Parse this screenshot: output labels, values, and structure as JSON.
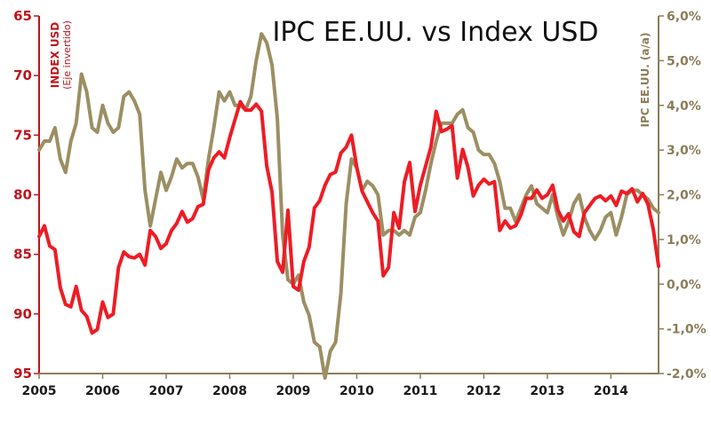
{
  "chart_data": {
    "type": "line",
    "title": "IPC EE.UU. vs Index USD",
    "x_start": "2005-01",
    "x_end": "2014-09",
    "x_step": "month",
    "x_ticks": [
      "2005",
      "2006",
      "2007",
      "2008",
      "2009",
      "2010",
      "2011",
      "2012",
      "2013",
      "2014"
    ],
    "y_left": {
      "label": "INDEX USD",
      "sublabel": "(Eje invertido)",
      "ylim": [
        65,
        95
      ],
      "inverted": true,
      "ticks": [
        "65",
        "70",
        "75",
        "80",
        "85",
        "90",
        "95"
      ],
      "color": "#ee1c24"
    },
    "y_right": {
      "label": "IPC EE.UU. (a/a)",
      "ylim": [
        -2.0,
        6.0
      ],
      "ticks": [
        "-2,0%",
        "-1,0%",
        "0,0%",
        "1,0%",
        "2,0%",
        "3,0%",
        "4,0%",
        "5,0%",
        "6,0%"
      ],
      "color": "#9b8f63"
    },
    "grid": false,
    "legend": "none",
    "series": [
      {
        "axis": "left",
        "color": "#ee1c24",
        "values": [
          83.5,
          82.6,
          84.3,
          84.6,
          87.8,
          89.2,
          89.4,
          87.7,
          89.7,
          90.2,
          91.6,
          91.3,
          89.0,
          90.3,
          90.0,
          86.1,
          84.8,
          85.2,
          85.3,
          85.0,
          85.9,
          83.0,
          83.5,
          84.5,
          84.1,
          83.0,
          82.4,
          81.4,
          82.3,
          82.0,
          81.0,
          80.8,
          77.9,
          76.9,
          76.4,
          76.9,
          75.2,
          73.7,
          72.2,
          72.9,
          72.9,
          72.4,
          73.0,
          77.6,
          79.8,
          85.6,
          86.5,
          81.3,
          87.7,
          88.0,
          85.6,
          84.4,
          81.1,
          80.5,
          79.2,
          78.3,
          78.1,
          76.5,
          76.0,
          75.0,
          77.7,
          79.7,
          80.6,
          81.5,
          82.2,
          86.8,
          86.1,
          81.5,
          82.8,
          78.9,
          77.3,
          81.4,
          79.2,
          77.6,
          76.0,
          73.0,
          74.7,
          74.5,
          74.2,
          78.6,
          76.2,
          77.7,
          80.1,
          79.2,
          78.7,
          79.1,
          78.9,
          83.0,
          82.2,
          82.8,
          82.6,
          81.7,
          80.3,
          80.3,
          79.6,
          80.3,
          80.0,
          79.2,
          81.3,
          82.2,
          81.6,
          83.1,
          83.5,
          81.5,
          80.9,
          80.3,
          80.1,
          80.5,
          80.1,
          80.9,
          79.7,
          79.9,
          79.5,
          80.6,
          79.9,
          80.8,
          82.9,
          86.0
        ]
      },
      {
        "axis": "right",
        "color": "#9b8f63",
        "values": [
          3.0,
          3.2,
          3.2,
          3.5,
          2.8,
          2.5,
          3.2,
          3.6,
          4.7,
          4.3,
          3.5,
          3.4,
          4.0,
          3.6,
          3.4,
          3.5,
          4.2,
          4.3,
          4.1,
          3.8,
          2.1,
          1.3,
          1.9,
          2.5,
          2.1,
          2.4,
          2.8,
          2.6,
          2.7,
          2.7,
          2.4,
          1.9,
          2.8,
          3.5,
          4.3,
          4.1,
          4.3,
          4.0,
          4.0,
          3.9,
          4.2,
          5.0,
          5.6,
          5.4,
          4.9,
          3.7,
          1.1,
          0.1,
          0.0,
          0.2,
          -0.4,
          -0.7,
          -1.3,
          -1.4,
          -2.1,
          -1.5,
          -1.3,
          -0.2,
          1.8,
          2.8,
          2.6,
          2.1,
          2.3,
          2.2,
          2.0,
          1.1,
          1.2,
          1.2,
          1.1,
          1.2,
          1.1,
          1.5,
          1.6,
          2.1,
          2.7,
          3.2,
          3.6,
          3.6,
          3.6,
          3.8,
          3.9,
          3.5,
          3.4,
          3.0,
          2.9,
          2.9,
          2.7,
          2.3,
          1.7,
          1.7,
          1.4,
          1.7,
          2.0,
          2.2,
          1.8,
          1.7,
          1.6,
          2.0,
          1.5,
          1.1,
          1.4,
          1.8,
          2.0,
          1.5,
          1.2,
          1.0,
          1.2,
          1.5,
          1.6,
          1.1,
          1.5,
          2.0,
          2.1,
          2.1,
          2.0,
          1.9,
          1.7,
          1.6
        ]
      }
    ]
  }
}
